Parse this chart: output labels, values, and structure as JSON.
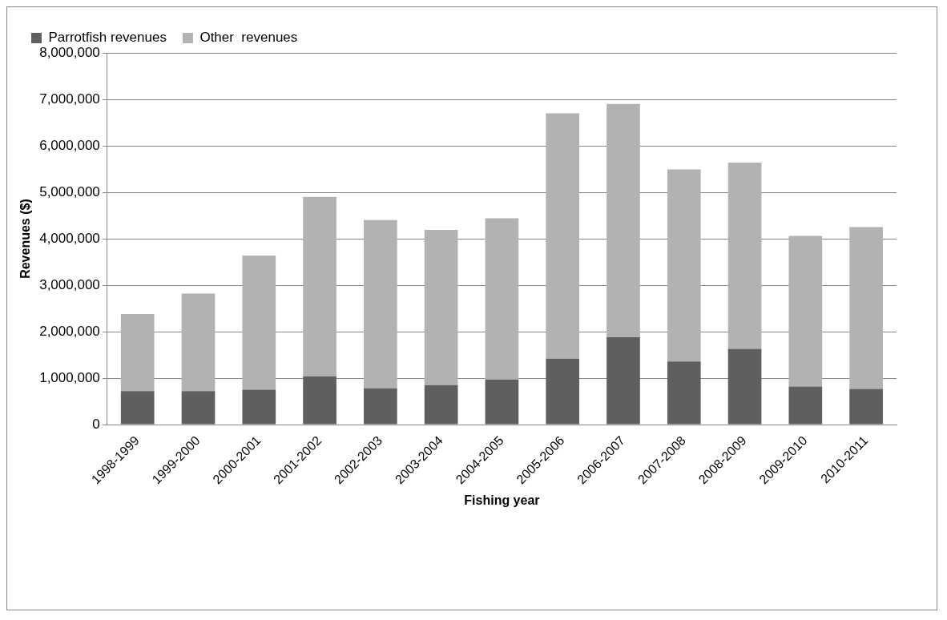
{
  "chart_data": {
    "type": "bar",
    "stacked": true,
    "xlabel": "Fishing year",
    "ylabel": "Revenues ($)",
    "categories": [
      "1998-1999",
      "1999-2000",
      "2000-2001",
      "2001-2002",
      "2002-2003",
      "2003-2004",
      "2004-2005",
      "2005-2006",
      "2006-2007",
      "2007-2008",
      "2008-2009",
      "2009-2010",
      "2010-2011"
    ],
    "series": [
      {
        "name": "Parrotfish revenues",
        "color": "#5f5f5f",
        "values": [
          720000,
          720000,
          750000,
          1040000,
          780000,
          850000,
          970000,
          1420000,
          1880000,
          1360000,
          1630000,
          820000,
          770000
        ]
      },
      {
        "name": "Other  revenues",
        "color": "#b2b2b2",
        "values": [
          1660000,
          2100000,
          2890000,
          3860000,
          3620000,
          3340000,
          3470000,
          5280000,
          5020000,
          4130000,
          4010000,
          3240000,
          3480000
        ]
      }
    ],
    "ylim": [
      0,
      8000000
    ],
    "yticks": [
      0,
      {
        "value": 1000000,
        "label": "1,000,000"
      },
      {
        "value": 2000000,
        "label": "2,000,000"
      },
      {
        "value": 3000000,
        "label": "3,000,000"
      },
      {
        "value": 4000000,
        "label": "4,000,000"
      },
      {
        "value": 5000000,
        "label": "5,000,000"
      },
      {
        "value": 6000000,
        "label": "6,000,000"
      },
      {
        "value": 7000000,
        "label": "7,000,000"
      },
      {
        "value": 8000000,
        "label": "8,000,000"
      }
    ],
    "grid": "y",
    "legend": "top left"
  }
}
